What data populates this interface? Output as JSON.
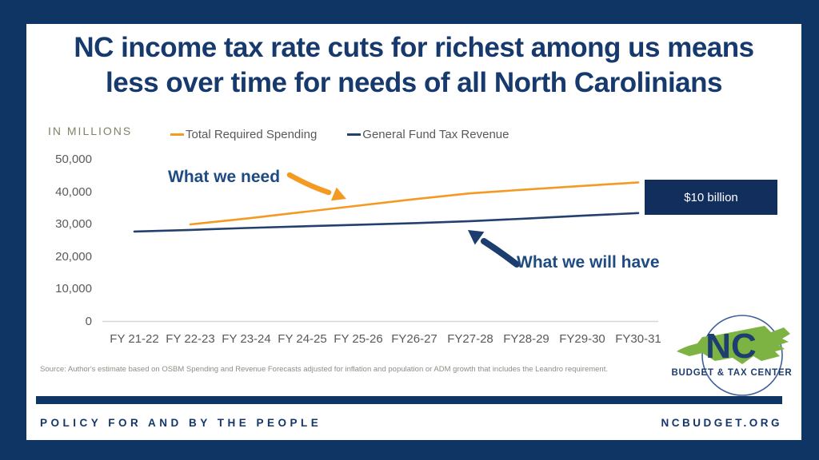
{
  "header": {
    "title_line1": "NC income tax rate cuts for richest among us means",
    "title_line2": "less over time for needs of all North Carolinians"
  },
  "chart": {
    "units_label": "IN MILLIONS",
    "annotations": {
      "need": "What we need",
      "have": "What we will have",
      "gap_badge": "$10 billion"
    },
    "source": "Source: Author's estimate based on OSBM Spending and Revenue Forecasts adjusted for inflation and population or ADM growth that includes the Leandro requirement."
  },
  "chart_data": {
    "type": "line",
    "title": "NC income tax rate cuts for richest among us means less over time for needs of all North Carolinians",
    "categories": [
      "FY 21-22",
      "FY 22-23",
      "FY 23-24",
      "FY 24-25",
      "FY 25-26",
      "FY26-27",
      "FY27-28",
      "FY28-29",
      "FY29-30",
      "FY30-31"
    ],
    "series": [
      {
        "name": "Total Required Spending",
        "color": "#F49A23",
        "values": [
          null,
          30000,
          31800,
          33800,
          35800,
          37800,
          39600,
          40800,
          41900,
          43000
        ]
      },
      {
        "name": "General Fund Tax Revenue",
        "color": "#24406E",
        "values": [
          27800,
          28300,
          28900,
          29400,
          29900,
          30400,
          31000,
          31800,
          32700,
          33500
        ]
      }
    ],
    "xlabel": "",
    "ylabel": "IN MILLIONS",
    "ylim": [
      0,
      50000
    ],
    "yticks": [
      0,
      10000,
      20000,
      30000,
      40000,
      50000
    ],
    "grid": false,
    "legend_position": "top",
    "gap_annotation_value_millions": 10000
  },
  "colors": {
    "border_navy": "#0F3564",
    "title_navy": "#16396E",
    "spending_orange": "#F49A23",
    "revenue_navy": "#24406E",
    "badge_navy": "#112E5C",
    "logo_green": "#7CB342"
  },
  "logo": {
    "abbr": "NC",
    "name": "BUDGET & TAX CENTER"
  },
  "footer": {
    "tagline": "POLICY FOR AND BY THE PEOPLE",
    "website": "NCBUDGET.ORG"
  }
}
